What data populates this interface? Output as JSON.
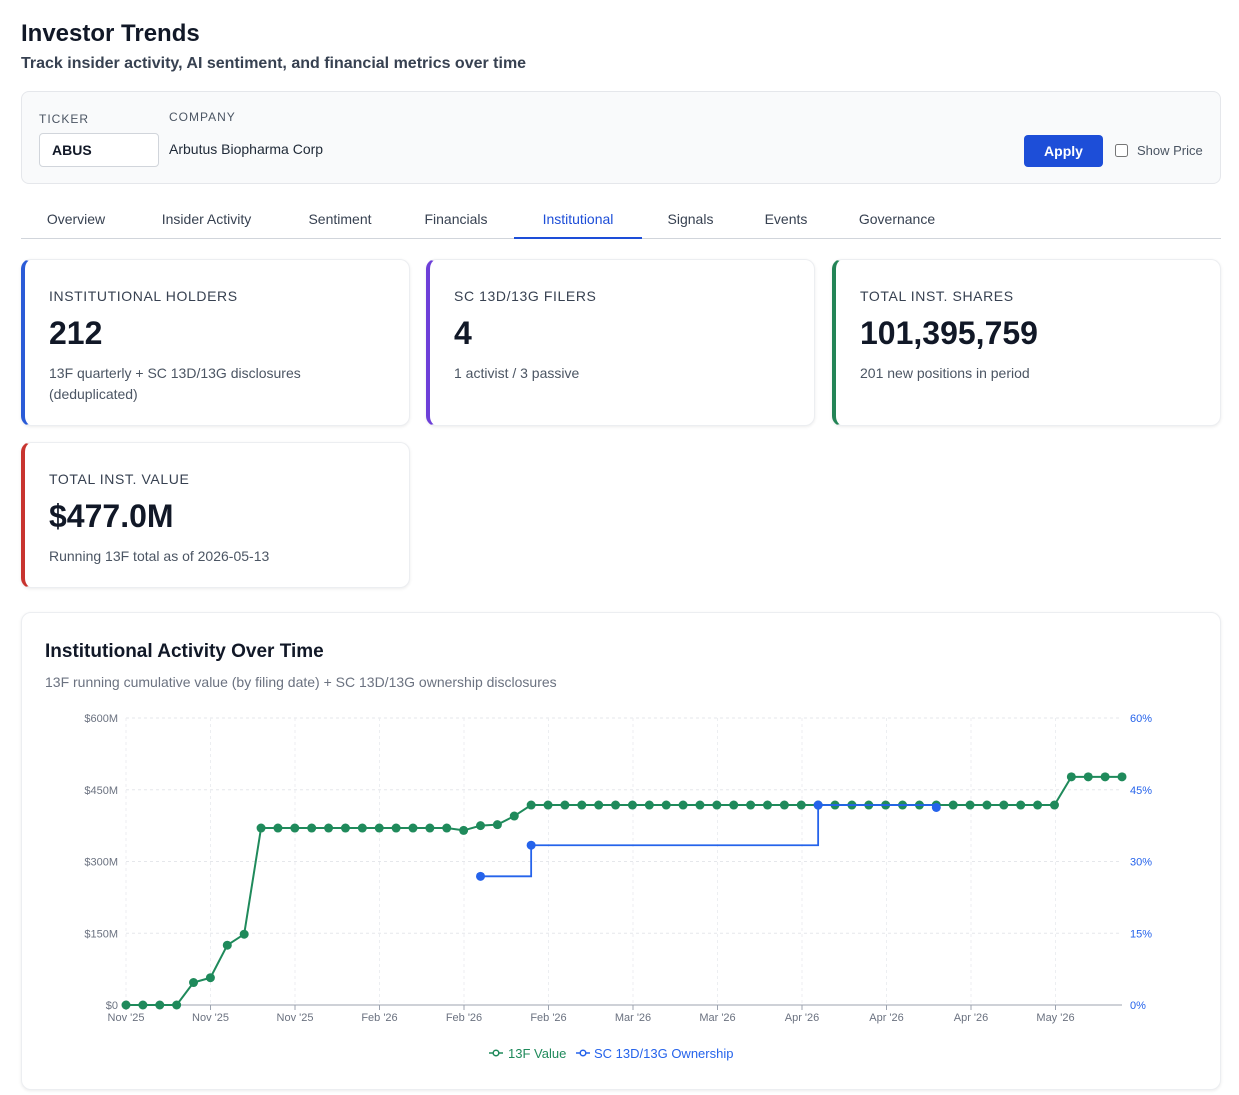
{
  "header": {
    "title": "Investor Trends",
    "subtitle": "Track insider activity, AI sentiment, and financial metrics over time"
  },
  "filters": {
    "ticker_label": "TICKER",
    "ticker_value": "ABUS",
    "company_label": "COMPANY",
    "company_value": "Arbutus Biopharma Corp",
    "apply_label": "Apply",
    "show_price_label": "Show Price",
    "show_price_checked": false
  },
  "tabs": [
    {
      "label": "Overview",
      "active": false
    },
    {
      "label": "Insider Activity",
      "active": false
    },
    {
      "label": "Sentiment",
      "active": false
    },
    {
      "label": "Financials",
      "active": false
    },
    {
      "label": "Institutional",
      "active": true
    },
    {
      "label": "Signals",
      "active": false
    },
    {
      "label": "Events",
      "active": false
    },
    {
      "label": "Governance",
      "active": false
    }
  ],
  "cards": [
    {
      "label": "INSTITUTIONAL HOLDERS",
      "value": "212",
      "desc": "13F quarterly + SC 13D/13G disclosures (deduplicated)",
      "accent": "#2a5bd7"
    },
    {
      "label": "SC 13D/13G FILERS",
      "value": "4",
      "desc": "1 activist / 3 passive",
      "accent": "#6d3fd8"
    },
    {
      "label": "TOTAL INST. SHARES",
      "value": "101,395,759",
      "desc": "201 new positions in period",
      "accent": "#238456"
    },
    {
      "label": "TOTAL INST. VALUE",
      "value": "$477.0M",
      "desc": "Running 13F total as of 2026-05-13",
      "accent": "#c8342f"
    }
  ],
  "chart": {
    "title": "Institutional Activity Over Time",
    "subtitle": "13F running cumulative value (by filing date) + SC 13D/13G ownership disclosures"
  },
  "chart_data": {
    "type": "line",
    "y_left_ticks": [
      "$0",
      "$150M",
      "$300M",
      "$450M",
      "$600M"
    ],
    "y_left_range": [
      0,
      600
    ],
    "y_right_ticks": [
      "0%",
      "15%",
      "30%",
      "45%",
      "60%"
    ],
    "y_right_range": [
      0,
      60
    ],
    "x_tick_labels": [
      "Nov '25",
      "Nov '25",
      "Nov '25",
      "Feb '26",
      "Feb '26",
      "Feb '26",
      "Mar '26",
      "Mar '26",
      "Apr '26",
      "Apr '26",
      "Apr '26",
      "May '26"
    ],
    "grid": true,
    "legend_position": "bottom-center",
    "series": [
      {
        "name": "13F Value",
        "color": "#1f8a5b",
        "axis": "left",
        "line_shape": "linear",
        "values": [
          0,
          0,
          0,
          0,
          47,
          57,
          125,
          148,
          370,
          370,
          370,
          370,
          370,
          370,
          370,
          370,
          370,
          370,
          370,
          370,
          365,
          375,
          377,
          395,
          418,
          418,
          418,
          418,
          418,
          418,
          418,
          418,
          418,
          418,
          418,
          418,
          418,
          418,
          418,
          418,
          418,
          418,
          418,
          418,
          418,
          418,
          418,
          418,
          418,
          418,
          418,
          418,
          418,
          418,
          418,
          418,
          477,
          477,
          477,
          477
        ]
      },
      {
        "name": "SC 13D/13G Ownership",
        "color": "#2563eb",
        "axis": "right",
        "line_shape": "step",
        "points": [
          {
            "x_index": 21,
            "value": 26.9
          },
          {
            "x_index": 24,
            "value": 33.4
          },
          {
            "x_index": 41,
            "value": 41.8
          },
          {
            "x_index": 48,
            "value": 41.3
          }
        ]
      }
    ]
  }
}
